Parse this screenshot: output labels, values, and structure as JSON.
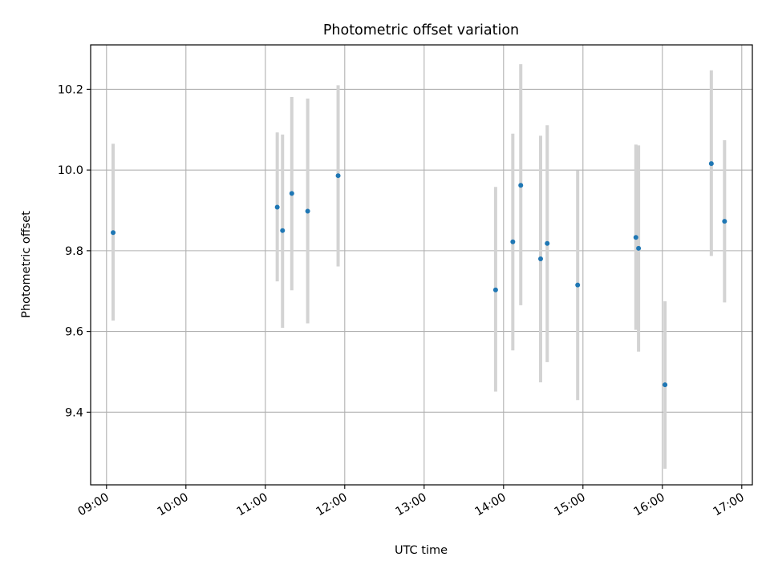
{
  "chart_data": {
    "type": "scatter",
    "title": "Photometric offset variation",
    "xlabel": "UTC time",
    "ylabel": "Photometric offset",
    "x_ticks": [
      "09:00",
      "10:00",
      "11:00",
      "12:00",
      "13:00",
      "14:00",
      "15:00",
      "16:00",
      "17:00"
    ],
    "y_ticks": [
      "9.4",
      "9.6",
      "9.8",
      "10.0",
      "10.2"
    ],
    "xlim": [
      "08:48",
      "17:08"
    ],
    "ylim": [
      9.22,
      10.31
    ],
    "grid": true,
    "marker_color": "#1f77b4",
    "errorbar_color": "#d3d3d3",
    "x_axis_unit": "UTC",
    "points": [
      {
        "x": "09:05",
        "y": 9.845,
        "ylow": 9.627,
        "yhigh": 10.065
      },
      {
        "x": "11:09",
        "y": 9.908,
        "ylow": 9.724,
        "yhigh": 10.093
      },
      {
        "x": "11:13",
        "y": 9.85,
        "ylow": 9.609,
        "yhigh": 10.088
      },
      {
        "x": "11:20",
        "y": 9.942,
        "ylow": 9.702,
        "yhigh": 10.181
      },
      {
        "x": "11:32",
        "y": 9.898,
        "ylow": 9.62,
        "yhigh": 10.177
      },
      {
        "x": "11:55",
        "y": 9.986,
        "ylow": 9.761,
        "yhigh": 10.21
      },
      {
        "x": "13:54",
        "y": 9.703,
        "ylow": 9.451,
        "yhigh": 9.958
      },
      {
        "x": "14:07",
        "y": 9.822,
        "ylow": 9.553,
        "yhigh": 10.09
      },
      {
        "x": "14:13",
        "y": 9.962,
        "ylow": 9.665,
        "yhigh": 10.262
      },
      {
        "x": "14:28",
        "y": 9.78,
        "ylow": 9.474,
        "yhigh": 10.085
      },
      {
        "x": "14:33",
        "y": 9.818,
        "ylow": 9.524,
        "yhigh": 10.111
      },
      {
        "x": "14:56",
        "y": 9.715,
        "ylow": 9.43,
        "yhigh": 9.999
      },
      {
        "x": "15:40",
        "y": 9.833,
        "ylow": 9.604,
        "yhigh": 10.063
      },
      {
        "x": "15:42",
        "y": 9.806,
        "ylow": 9.55,
        "yhigh": 10.061
      },
      {
        "x": "16:02",
        "y": 9.468,
        "ylow": 9.26,
        "yhigh": 9.675
      },
      {
        "x": "16:37",
        "y": 10.016,
        "ylow": 9.787,
        "yhigh": 10.247
      },
      {
        "x": "16:47",
        "y": 9.873,
        "ylow": 9.672,
        "yhigh": 10.074
      }
    ]
  }
}
